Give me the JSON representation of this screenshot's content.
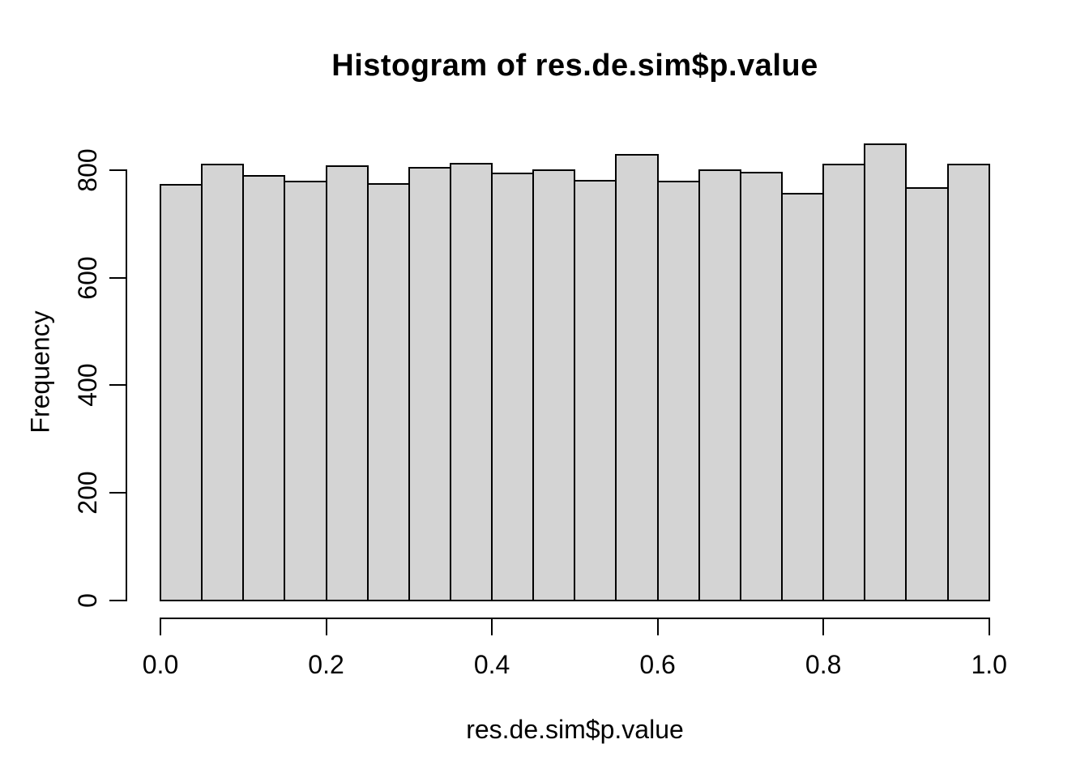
{
  "chart_data": {
    "type": "bar",
    "chart_kind": "histogram",
    "title": "Histogram of res.de.sim$p.value",
    "xlabel": "res.de.sim$p.value",
    "ylabel": "Frequency",
    "bin_start": 0.0,
    "bin_width": 0.05,
    "counts": [
      772,
      811,
      790,
      779,
      807,
      774,
      804,
      812,
      794,
      800,
      781,
      829,
      779,
      800,
      796,
      756,
      811,
      848,
      766,
      811
    ],
    "x_ticks": [
      {
        "value": 0.0,
        "label": "0.0"
      },
      {
        "value": 0.2,
        "label": "0.2"
      },
      {
        "value": 0.4,
        "label": "0.4"
      },
      {
        "value": 0.6,
        "label": "0.6"
      },
      {
        "value": 0.8,
        "label": "0.8"
      },
      {
        "value": 1.0,
        "label": "1.0"
      }
    ],
    "y_ticks": [
      {
        "value": 0,
        "label": "0"
      },
      {
        "value": 200,
        "label": "200"
      },
      {
        "value": 400,
        "label": "400"
      },
      {
        "value": 600,
        "label": "600"
      },
      {
        "value": 800,
        "label": "800"
      }
    ],
    "xlim": [
      0.0,
      1.0
    ],
    "ylim": [
      0,
      848
    ],
    "grid": false,
    "legend": false,
    "colors": {
      "bar_fill": "#d4d4d4",
      "bar_border": "#000000",
      "axis": "#000000",
      "text": "#000000",
      "background": "#ffffff"
    }
  }
}
